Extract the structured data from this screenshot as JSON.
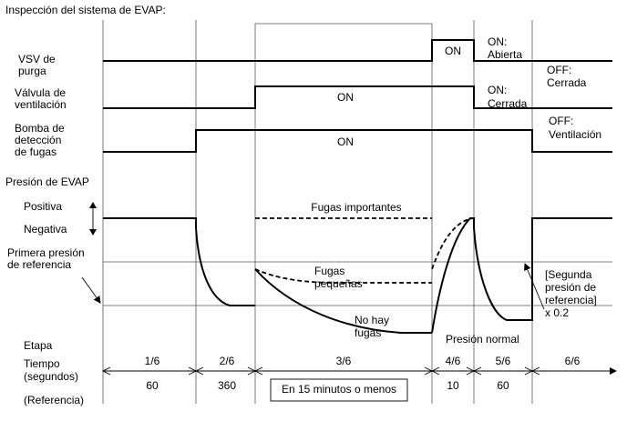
{
  "title": "Inspección del sistema de EVAP:",
  "rows": {
    "vsv_line1": "VSV de",
    "vsv_line2": "purga",
    "vent_line1": "Válvula de",
    "vent_line2": "ventilación",
    "pump_line1": "Bomba de",
    "pump_line2": "detección",
    "pump_line3": "de fugas",
    "pressure": "Presión de EVAP",
    "positive": "Positiva",
    "negative": "Negativa",
    "first_ref_line1": "Primera presión",
    "first_ref_line2": "de referencia"
  },
  "signals": {
    "vsv_on": "ON",
    "vsv_on_note_1": "ON:",
    "vsv_on_note_2": "Abierta",
    "vsv_off_note_1": "OFF:",
    "vsv_off_note_2": "Cerrada",
    "vent_on": "ON",
    "vent_on_note_1": "ON:",
    "vent_on_note_2": "Cerrada",
    "pump_on": "ON",
    "pump_off_note_1": "OFF:",
    "pump_off_note_2": "Ventilación"
  },
  "curves": {
    "major_leak": "Fugas importantes",
    "small_leak_1": "Fugas",
    "small_leak_2": "pequeñas",
    "no_leak_1": "No hay",
    "no_leak_2": "fugas",
    "normal_pressure": "Presión normal",
    "second_ref_1": "[Segunda",
    "second_ref_2": "presión de",
    "second_ref_3": "referencia]",
    "second_ref_4": "x 0.2"
  },
  "table": {
    "stage_label": "Etapa",
    "time_label_1": "Tiempo",
    "time_label_2": "(segundos)",
    "reference_label": "(Referencia)",
    "stages": [
      "1/6",
      "2/6",
      "3/6",
      "4/6",
      "5/6",
      "6/6"
    ],
    "times": [
      "60",
      "360",
      "En 15 minutos o menos",
      "10",
      "60"
    ]
  }
}
